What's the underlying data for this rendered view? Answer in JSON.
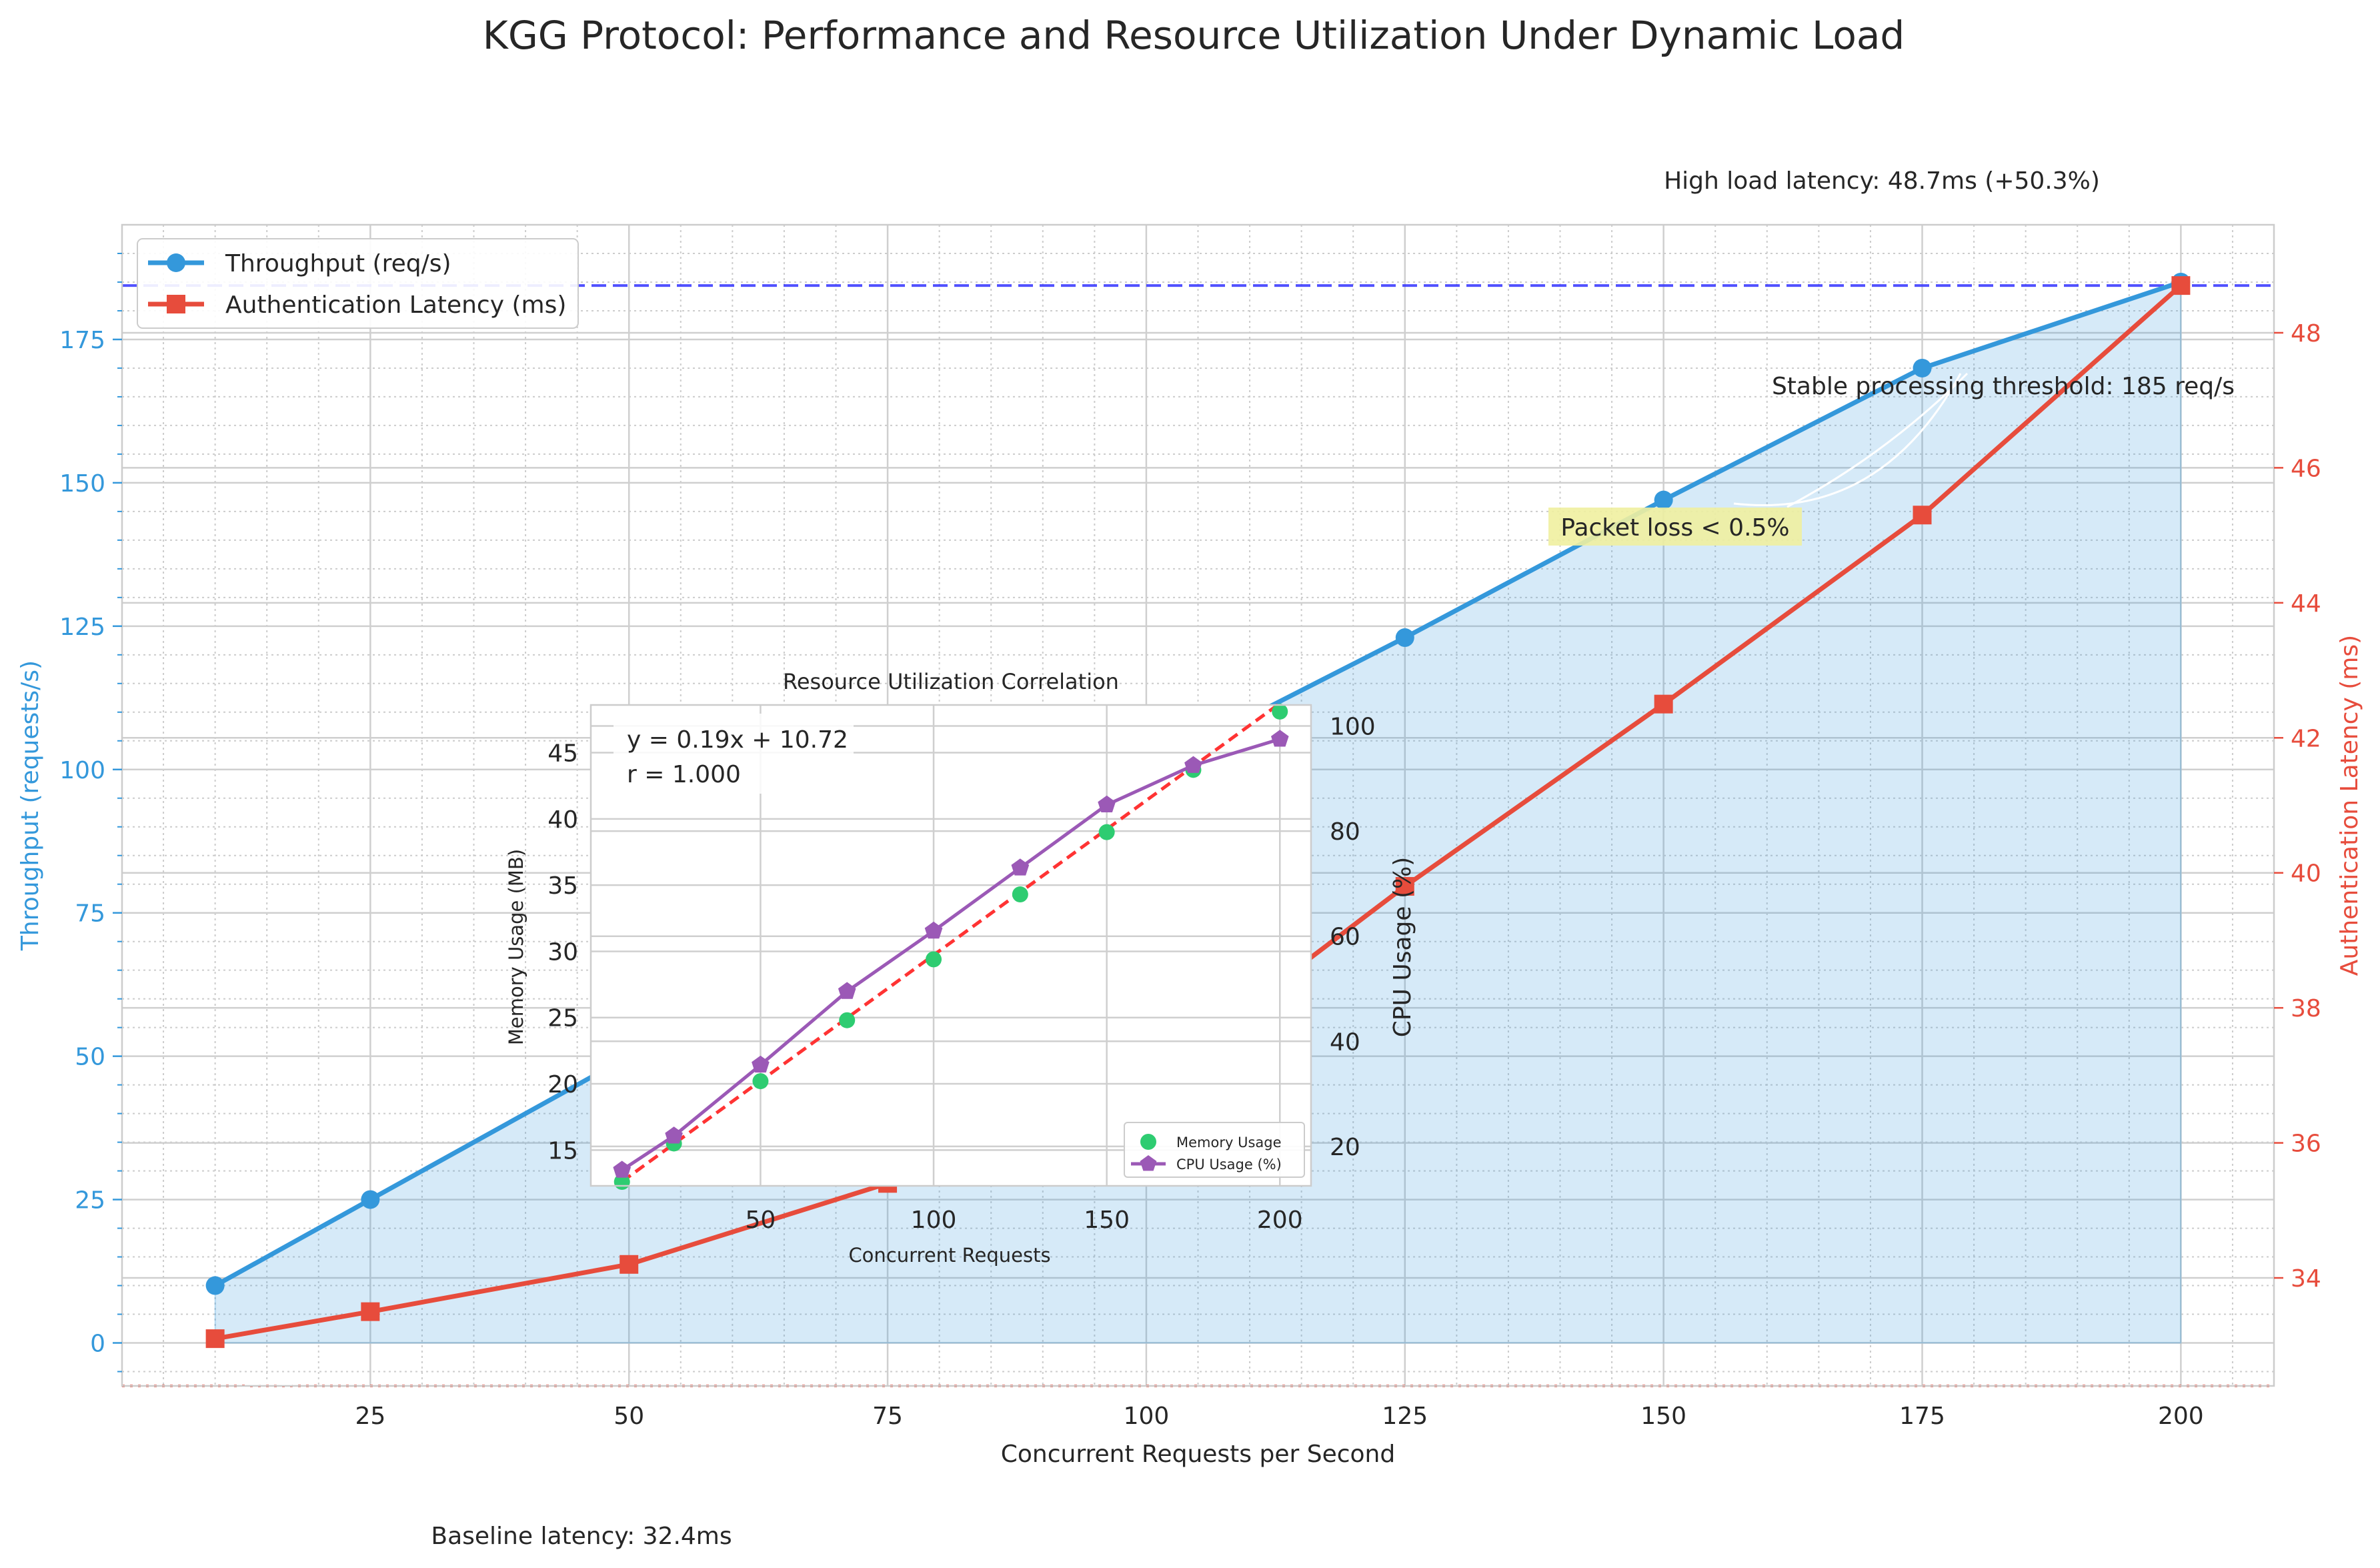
{
  "figure": {
    "title": "KGG Protocol: Performance and Resource Utilization Under Dynamic Load"
  },
  "chart_data": [
    {
      "type": "line",
      "xlabel": "Concurrent Requests per Second",
      "ylabel": "Throughput (requests/s)",
      "y2label": "Authentication Latency (ms)",
      "xlim": [
        1,
        209
      ],
      "ylim": [
        -7.5,
        195
      ],
      "y2lim": [
        32.4,
        49.6
      ],
      "xticks": [
        25,
        50,
        75,
        100,
        125,
        150,
        175,
        200
      ],
      "yticks": [
        0,
        25,
        50,
        75,
        100,
        125,
        150,
        175
      ],
      "y2ticks": [
        34,
        36,
        38,
        40,
        42,
        44,
        46,
        48
      ],
      "grid": true,
      "legend_position": "top-left",
      "x": [
        10,
        25,
        50,
        75,
        100,
        125,
        150,
        175,
        200
      ],
      "series": [
        {
          "name": "Throughput (req/s)",
          "axis": "left",
          "color": "#3498db",
          "marker": "circle",
          "fill_under": true,
          "values": [
            10,
            25,
            50,
            75,
            100,
            123,
            147,
            170,
            185
          ]
        },
        {
          "name": "Authentication Latency (ms)",
          "axis": "right",
          "color": "#e74c3c",
          "marker": "square",
          "values": [
            33.1,
            33.5,
            34.2,
            35.4,
            36.9,
            39.8,
            42.5,
            45.3,
            48.7
          ]
        }
      ],
      "reference_lines": [
        {
          "axis": "right",
          "value": 48.7,
          "color": "#3333ff",
          "style": "dashed"
        },
        {
          "axis": "right",
          "value": 32.4,
          "color": "#e74c3c",
          "style": "dotted"
        }
      ],
      "annotations": [
        {
          "text": "High load latency: 48.7ms (+50.3%)"
        },
        {
          "text": "Stable processing threshold: 185 req/s"
        },
        {
          "text": "Packet loss < 0.5%",
          "highlight": "#f0f0a0"
        },
        {
          "text": "Baseline latency: 32.4ms"
        }
      ]
    },
    {
      "type": "scatter",
      "title": "Resource Utilization Correlation",
      "xlabel": "Concurrent Requests",
      "ylabel": "Memory Usage (MB)",
      "y2label": "CPU Usage (%)",
      "xlim": [
        1,
        209
      ],
      "ylim": [
        12.3,
        48.6
      ],
      "y2lim": [
        12.5,
        104
      ],
      "xticks": [
        50,
        100,
        150,
        200
      ],
      "yticks": [
        15,
        20,
        25,
        30,
        35,
        40,
        45
      ],
      "y2ticks": [
        20,
        40,
        60,
        80,
        100
      ],
      "legend_position": "bottom-right",
      "fit_label": "y = 0.19x + 10.72",
      "r_label": "r = 1.000",
      "fit": {
        "slope": 0.19,
        "intercept": 10.72,
        "color": "#ff3333",
        "style": "dashed"
      },
      "x": [
        10,
        25,
        50,
        75,
        100,
        125,
        150,
        175,
        200
      ],
      "series": [
        {
          "name": "Memory Usage",
          "axis": "left",
          "color": "#2ecc71",
          "marker": "circle",
          "values": [
            12.6,
            15.5,
            20.2,
            24.8,
            29.4,
            34.3,
            39.0,
            43.7,
            48.1
          ]
        },
        {
          "name": "CPU Usage (%)",
          "axis": "right",
          "color": "#9b59b6",
          "marker": "pentagon",
          "values": [
            15.5,
            22,
            35.5,
            49.5,
            61,
            73,
            85,
            92.5,
            97.5
          ]
        }
      ]
    }
  ]
}
